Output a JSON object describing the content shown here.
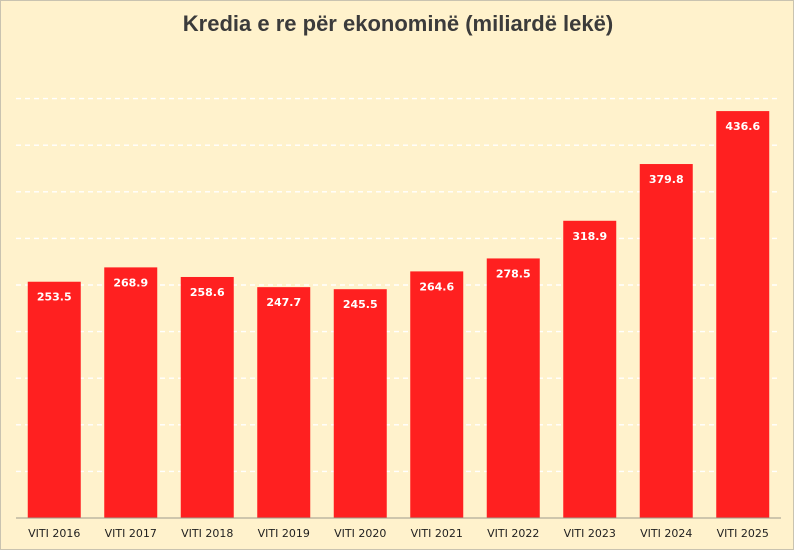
{
  "chart_data": {
    "type": "bar",
    "title": "Kredia e re për ekonominë (miliardë lekë)",
    "xlabel": "",
    "ylabel": "",
    "categories": [
      "VITI 2016",
      "VITI 2017",
      "VITI 2018",
      "VITI 2019",
      "VITI 2020",
      "VITI 2021",
      "VITI 2022",
      "VITI 2023",
      "VITI 2024",
      "VITI 2025"
    ],
    "values": [
      253.5,
      268.9,
      258.6,
      247.7,
      245.5,
      264.6,
      278.5,
      318.9,
      379.8,
      436.6
    ],
    "value_labels": [
      "253.5",
      "268.9",
      "258.6",
      "247.7",
      "245.5",
      "264.6",
      "278.5",
      "318.9",
      "379.8",
      "436.6"
    ],
    "ylim": [
      0,
      450
    ],
    "gridlines": true,
    "gridline_step": 50,
    "legend": "none",
    "colors": {
      "bar": "#ff2020",
      "background": "#fff2cc",
      "grid": "#ffffff",
      "axis": "#9e9a8c",
      "bar_label": "#ffffff"
    }
  }
}
